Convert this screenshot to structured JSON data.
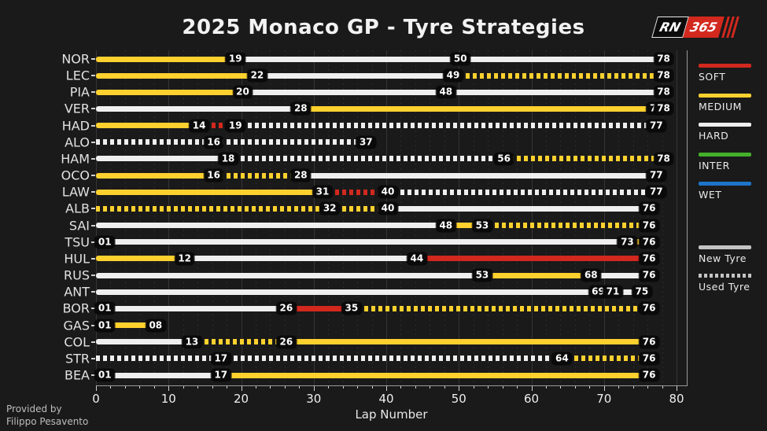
{
  "title": "2025 Monaco GP - Tyre Strategies",
  "logo": {
    "rn": "RN",
    "num": "365"
  },
  "credit": {
    "line1": "Provided by",
    "line2": "Filippo Pesavento"
  },
  "xaxis": {
    "label": "Lap Number",
    "ticks": [
      0,
      10,
      20,
      30,
      40,
      50,
      60,
      70,
      80
    ],
    "minor_step": 2,
    "max": 80
  },
  "legend": {
    "compounds": [
      {
        "name": "SOFT",
        "color": "#d2281e"
      },
      {
        "name": "MEDIUM",
        "color": "#ffd12e"
      },
      {
        "name": "HARD",
        "color": "#efefef"
      },
      {
        "name": "INTER",
        "color": "#43b02a"
      },
      {
        "name": "WET",
        "color": "#1e74c8"
      }
    ],
    "tyre_state": [
      {
        "name": "New Tyre",
        "style": "solid"
      },
      {
        "name": "Used Tyre",
        "style": "dashed"
      }
    ],
    "state_color": "#c4c4c4"
  },
  "chart_data": {
    "type": "bar",
    "orientation": "horizontal-timeline",
    "title": "2025 Monaco GP - Tyre Strategies",
    "xlabel": "Lap Number",
    "xlim": [
      0,
      80
    ],
    "grid": true,
    "background": "#1a1a1a",
    "compound_colors": {
      "soft": "#d2281e",
      "medium": "#ffd12e",
      "hard": "#efefef",
      "inter": "#43b02a",
      "wet": "#1e74c8"
    },
    "drivers": [
      {
        "code": "NOR",
        "stints": [
          {
            "start_lap": 0,
            "end_lap": 19,
            "compound": "medium",
            "used": false,
            "label": "19"
          },
          {
            "start_lap": 19,
            "end_lap": 50,
            "compound": "hard",
            "used": false,
            "label": "50"
          },
          {
            "start_lap": 50,
            "end_lap": 78,
            "compound": "hard",
            "used": false,
            "label": "78"
          }
        ]
      },
      {
        "code": "LEC",
        "stints": [
          {
            "start_lap": 0,
            "end_lap": 22,
            "compound": "medium",
            "used": false,
            "label": "22"
          },
          {
            "start_lap": 22,
            "end_lap": 49,
            "compound": "hard",
            "used": false,
            "label": "49"
          },
          {
            "start_lap": 49,
            "end_lap": 78,
            "compound": "medium",
            "used": true,
            "label": "78"
          }
        ]
      },
      {
        "code": "PIA",
        "stints": [
          {
            "start_lap": 0,
            "end_lap": 20,
            "compound": "medium",
            "used": false,
            "label": "20"
          },
          {
            "start_lap": 20,
            "end_lap": 48,
            "compound": "hard",
            "used": false,
            "label": "48"
          },
          {
            "start_lap": 48,
            "end_lap": 78,
            "compound": "hard",
            "used": false,
            "label": "78"
          }
        ]
      },
      {
        "code": "VER",
        "stints": [
          {
            "start_lap": 0,
            "end_lap": 28,
            "compound": "hard",
            "used": false,
            "label": "28"
          },
          {
            "start_lap": 28,
            "end_lap": 77,
            "compound": "medium",
            "used": false,
            "label": "77"
          },
          {
            "start_lap": 77,
            "end_lap": 78,
            "compound": "hard",
            "used": false,
            "label": "78"
          }
        ]
      },
      {
        "code": "HAD",
        "stints": [
          {
            "start_lap": 0,
            "end_lap": 14,
            "compound": "medium",
            "used": false,
            "label": "14"
          },
          {
            "start_lap": 14,
            "end_lap": 19,
            "compound": "soft",
            "used": true,
            "label": "19"
          },
          {
            "start_lap": 19,
            "end_lap": 77,
            "compound": "hard",
            "used": true,
            "label": "77"
          }
        ]
      },
      {
        "code": "ALO",
        "stints": [
          {
            "start_lap": 0,
            "end_lap": 16,
            "compound": "hard",
            "used": true,
            "label": "16"
          },
          {
            "start_lap": 16,
            "end_lap": 37,
            "compound": "hard",
            "used": true,
            "label": "37"
          }
        ]
      },
      {
        "code": "HAM",
        "stints": [
          {
            "start_lap": 0,
            "end_lap": 18,
            "compound": "hard",
            "used": false,
            "label": "18"
          },
          {
            "start_lap": 18,
            "end_lap": 56,
            "compound": "hard",
            "used": true,
            "label": "56"
          },
          {
            "start_lap": 56,
            "end_lap": 78,
            "compound": "medium",
            "used": true,
            "label": "78"
          }
        ]
      },
      {
        "code": "OCO",
        "stints": [
          {
            "start_lap": 0,
            "end_lap": 16,
            "compound": "medium",
            "used": false,
            "label": "16"
          },
          {
            "start_lap": 16,
            "end_lap": 28,
            "compound": "medium",
            "used": true,
            "label": "28"
          },
          {
            "start_lap": 28,
            "end_lap": 77,
            "compound": "hard",
            "used": false,
            "label": "77"
          }
        ]
      },
      {
        "code": "LAW",
        "stints": [
          {
            "start_lap": 0,
            "end_lap": 31,
            "compound": "medium",
            "used": false,
            "label": "31"
          },
          {
            "start_lap": 31,
            "end_lap": 40,
            "compound": "soft",
            "used": true,
            "label": "40"
          },
          {
            "start_lap": 40,
            "end_lap": 77,
            "compound": "hard",
            "used": true,
            "label": "77"
          }
        ]
      },
      {
        "code": "ALB",
        "stints": [
          {
            "start_lap": 0,
            "end_lap": 32,
            "compound": "medium",
            "used": true,
            "label": "32"
          },
          {
            "start_lap": 32,
            "end_lap": 40,
            "compound": "medium",
            "used": true,
            "label": "40"
          },
          {
            "start_lap": 40,
            "end_lap": 76,
            "compound": "hard",
            "used": false,
            "label": "76"
          }
        ]
      },
      {
        "code": "SAI",
        "stints": [
          {
            "start_lap": 0,
            "end_lap": 48,
            "compound": "hard",
            "used": false,
            "label": "48"
          },
          {
            "start_lap": 48,
            "end_lap": 53,
            "compound": "medium",
            "used": false,
            "label": "53"
          },
          {
            "start_lap": 53,
            "end_lap": 76,
            "compound": "medium",
            "used": true,
            "label": "76"
          }
        ]
      },
      {
        "code": "TSU",
        "stints": [
          {
            "start_lap": 0,
            "end_lap": 1,
            "compound": "hard",
            "used": false,
            "label": "01"
          },
          {
            "start_lap": 1,
            "end_lap": 73,
            "compound": "hard",
            "used": false,
            "label": "73"
          },
          {
            "start_lap": 73,
            "end_lap": 76,
            "compound": "medium",
            "used": false,
            "label": "76"
          }
        ]
      },
      {
        "code": "HUL",
        "stints": [
          {
            "start_lap": 0,
            "end_lap": 12,
            "compound": "medium",
            "used": false,
            "label": "12"
          },
          {
            "start_lap": 12,
            "end_lap": 44,
            "compound": "hard",
            "used": false,
            "label": "44"
          },
          {
            "start_lap": 44,
            "end_lap": 76,
            "compound": "soft",
            "used": false,
            "label": "76"
          }
        ]
      },
      {
        "code": "RUS",
        "stints": [
          {
            "start_lap": 0,
            "end_lap": 53,
            "compound": "hard",
            "used": false,
            "label": "53"
          },
          {
            "start_lap": 53,
            "end_lap": 68,
            "compound": "medium",
            "used": false,
            "label": "68"
          },
          {
            "start_lap": 68,
            "end_lap": 76,
            "compound": "hard",
            "used": false,
            "label": "76"
          }
        ]
      },
      {
        "code": "ANT",
        "stints": [
          {
            "start_lap": 0,
            "end_lap": 69,
            "compound": "hard",
            "used": false,
            "label": "69"
          },
          {
            "start_lap": 69,
            "end_lap": 71,
            "compound": "hard",
            "used": false,
            "label": "71"
          },
          {
            "start_lap": 71,
            "end_lap": 75,
            "compound": "hard",
            "used": false,
            "label": "75"
          }
        ]
      },
      {
        "code": "BOR",
        "stints": [
          {
            "start_lap": 0,
            "end_lap": 1,
            "compound": "hard",
            "used": false,
            "label": "01"
          },
          {
            "start_lap": 1,
            "end_lap": 26,
            "compound": "hard",
            "used": false,
            "label": "26"
          },
          {
            "start_lap": 26,
            "end_lap": 35,
            "compound": "soft",
            "used": false,
            "label": "35"
          },
          {
            "start_lap": 35,
            "end_lap": 76,
            "compound": "medium",
            "used": true,
            "label": "76"
          }
        ]
      },
      {
        "code": "GAS",
        "stints": [
          {
            "start_lap": 0,
            "end_lap": 1,
            "compound": "hard",
            "used": false,
            "label": "01"
          },
          {
            "start_lap": 1,
            "end_lap": 8,
            "compound": "medium",
            "used": false,
            "label": "08"
          }
        ]
      },
      {
        "code": "COL",
        "stints": [
          {
            "start_lap": 0,
            "end_lap": 13,
            "compound": "hard",
            "used": false,
            "label": "13"
          },
          {
            "start_lap": 13,
            "end_lap": 26,
            "compound": "medium",
            "used": true,
            "label": "26"
          },
          {
            "start_lap": 26,
            "end_lap": 76,
            "compound": "medium",
            "used": false,
            "label": "76"
          }
        ]
      },
      {
        "code": "STR",
        "stints": [
          {
            "start_lap": 0,
            "end_lap": 17,
            "compound": "hard",
            "used": true,
            "label": "17"
          },
          {
            "start_lap": 17,
            "end_lap": 64,
            "compound": "hard",
            "used": true,
            "label": "64"
          },
          {
            "start_lap": 64,
            "end_lap": 76,
            "compound": "medium",
            "used": true,
            "label": "76"
          }
        ]
      },
      {
        "code": "BEA",
        "stints": [
          {
            "start_lap": 0,
            "end_lap": 1,
            "compound": "hard",
            "used": false,
            "label": "01"
          },
          {
            "start_lap": 1,
            "end_lap": 17,
            "compound": "hard",
            "used": false,
            "label": "17"
          },
          {
            "start_lap": 17,
            "end_lap": 76,
            "compound": "medium",
            "used": false,
            "label": "76"
          }
        ]
      }
    ]
  }
}
